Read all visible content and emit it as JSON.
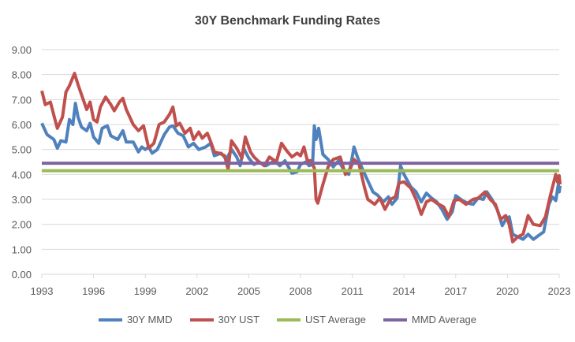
{
  "chart_data": {
    "type": "line",
    "title": "30Y Benchmark Funding Rates",
    "xlabel": "",
    "ylabel": "",
    "ylim": [
      0,
      9
    ],
    "xlim": [
      1993,
      2023
    ],
    "yticks": [
      "0.00",
      "1.00",
      "2.00",
      "3.00",
      "4.00",
      "5.00",
      "6.00",
      "7.00",
      "8.00",
      "9.00"
    ],
    "xticks": [
      "1993",
      "1996",
      "1999",
      "2002",
      "2005",
      "2008",
      "2011",
      "2014",
      "2017",
      "2020",
      "2023"
    ],
    "grid": true,
    "legend": "bottom",
    "series": [
      {
        "name": "30Y MMD",
        "color": "#4f81bd",
        "points": [
          [
            1993,
            6.05
          ],
          [
            1993.3,
            5.6
          ],
          [
            1993.7,
            5.4
          ],
          [
            1993.9,
            5.05
          ],
          [
            1994.1,
            5.35
          ],
          [
            1994.4,
            5.3
          ],
          [
            1994.6,
            6.2
          ],
          [
            1994.8,
            6.0
          ],
          [
            1994.95,
            6.85
          ],
          [
            1995.1,
            6.3
          ],
          [
            1995.3,
            5.9
          ],
          [
            1995.6,
            5.75
          ],
          [
            1995.8,
            6.05
          ],
          [
            1996,
            5.5
          ],
          [
            1996.3,
            5.25
          ],
          [
            1996.5,
            5.85
          ],
          [
            1996.8,
            5.95
          ],
          [
            1997,
            5.55
          ],
          [
            1997.4,
            5.4
          ],
          [
            1997.7,
            5.75
          ],
          [
            1997.9,
            5.3
          ],
          [
            1998.3,
            5.3
          ],
          [
            1998.6,
            4.9
          ],
          [
            1998.8,
            5.1
          ],
          [
            1999,
            5.0
          ],
          [
            1999.2,
            5.1
          ],
          [
            1999.4,
            4.85
          ],
          [
            1999.7,
            5.0
          ],
          [
            2000.1,
            5.6
          ],
          [
            2000.4,
            5.9
          ],
          [
            2000.6,
            5.95
          ],
          [
            2000.9,
            5.65
          ],
          [
            2001.2,
            5.55
          ],
          [
            2001.5,
            5.1
          ],
          [
            2001.8,
            5.25
          ],
          [
            2002.1,
            5.0
          ],
          [
            2002.5,
            5.1
          ],
          [
            2002.8,
            5.25
          ],
          [
            2003,
            4.75
          ],
          [
            2003.4,
            4.85
          ],
          [
            2003.7,
            4.6
          ],
          [
            2004,
            5.0
          ],
          [
            2004.3,
            4.7
          ],
          [
            2004.5,
            4.35
          ],
          [
            2004.7,
            5.05
          ],
          [
            2005,
            4.65
          ],
          [
            2005.3,
            4.4
          ],
          [
            2005.6,
            4.5
          ],
          [
            2006,
            4.35
          ],
          [
            2006.5,
            4.55
          ],
          [
            2006.8,
            4.35
          ],
          [
            2007.1,
            4.55
          ],
          [
            2007.5,
            4.05
          ],
          [
            2007.8,
            4.1
          ],
          [
            2008,
            4.4
          ],
          [
            2008.3,
            4.5
          ],
          [
            2008.5,
            4.35
          ],
          [
            2008.7,
            4.4
          ],
          [
            2008.8,
            5.95
          ],
          [
            2008.9,
            5.4
          ],
          [
            2009.05,
            5.85
          ],
          [
            2009.3,
            4.8
          ],
          [
            2009.6,
            4.6
          ],
          [
            2009.9,
            4.3
          ],
          [
            2010.2,
            4.55
          ],
          [
            2010.5,
            4.2
          ],
          [
            2010.8,
            4.0
          ],
          [
            2011,
            4.7
          ],
          [
            2011.1,
            5.1
          ],
          [
            2011.3,
            4.7
          ],
          [
            2011.6,
            4.2
          ],
          [
            2011.9,
            3.75
          ],
          [
            2012.2,
            3.3
          ],
          [
            2012.5,
            3.15
          ],
          [
            2012.8,
            2.9
          ],
          [
            2013.1,
            3.1
          ],
          [
            2013.3,
            2.8
          ],
          [
            2013.6,
            3.05
          ],
          [
            2013.8,
            4.35
          ],
          [
            2014,
            4.0
          ],
          [
            2014.4,
            3.5
          ],
          [
            2014.7,
            3.3
          ],
          [
            2015,
            2.9
          ],
          [
            2015.3,
            3.25
          ],
          [
            2015.6,
            3.05
          ],
          [
            2015.9,
            2.9
          ],
          [
            2016.2,
            2.6
          ],
          [
            2016.5,
            2.2
          ],
          [
            2016.8,
            2.5
          ],
          [
            2017,
            3.15
          ],
          [
            2017.4,
            2.95
          ],
          [
            2017.7,
            2.85
          ],
          [
            2018,
            2.8
          ],
          [
            2018.3,
            3.05
          ],
          [
            2018.6,
            3.0
          ],
          [
            2018.8,
            3.3
          ],
          [
            2019.1,
            3.0
          ],
          [
            2019.4,
            2.6
          ],
          [
            2019.7,
            1.95
          ],
          [
            2019.9,
            2.2
          ],
          [
            2020.1,
            2.3
          ],
          [
            2020.3,
            1.6
          ],
          [
            2020.6,
            1.5
          ],
          [
            2020.9,
            1.4
          ],
          [
            2021.2,
            1.6
          ],
          [
            2021.5,
            1.4
          ],
          [
            2021.8,
            1.55
          ],
          [
            2022.1,
            1.7
          ],
          [
            2022.4,
            2.8
          ],
          [
            2022.6,
            3.1
          ],
          [
            2022.8,
            2.95
          ],
          [
            2022.95,
            3.6
          ],
          [
            2023,
            3.3
          ],
          [
            2023.05,
            3.55
          ]
        ]
      },
      {
        "name": "30Y UST",
        "color": "#c0504d",
        "points": [
          [
            1993,
            7.35
          ],
          [
            1993.2,
            6.8
          ],
          [
            1993.5,
            6.9
          ],
          [
            1993.8,
            6.1
          ],
          [
            1993.9,
            5.85
          ],
          [
            1994.2,
            6.3
          ],
          [
            1994.4,
            7.3
          ],
          [
            1994.6,
            7.55
          ],
          [
            1994.9,
            8.05
          ],
          [
            1995.1,
            7.6
          ],
          [
            1995.4,
            7.0
          ],
          [
            1995.6,
            6.6
          ],
          [
            1995.8,
            6.9
          ],
          [
            1996,
            6.2
          ],
          [
            1996.2,
            6.1
          ],
          [
            1996.4,
            6.7
          ],
          [
            1996.7,
            7.1
          ],
          [
            1997,
            6.8
          ],
          [
            1997.2,
            6.55
          ],
          [
            1997.5,
            6.9
          ],
          [
            1997.7,
            7.05
          ],
          [
            1997.9,
            6.6
          ],
          [
            1998.3,
            6.0
          ],
          [
            1998.6,
            5.75
          ],
          [
            1998.9,
            5.95
          ],
          [
            1999.2,
            5.05
          ],
          [
            1999.5,
            5.25
          ],
          [
            1999.8,
            6.0
          ],
          [
            2000.1,
            6.1
          ],
          [
            2000.4,
            6.4
          ],
          [
            2000.6,
            6.7
          ],
          [
            2000.8,
            5.95
          ],
          [
            2001,
            6.05
          ],
          [
            2001.3,
            5.65
          ],
          [
            2001.6,
            5.85
          ],
          [
            2001.8,
            5.4
          ],
          [
            2002.1,
            5.7
          ],
          [
            2002.3,
            5.45
          ],
          [
            2002.6,
            5.65
          ],
          [
            2002.8,
            5.3
          ],
          [
            2003,
            4.9
          ],
          [
            2003.3,
            4.85
          ],
          [
            2003.6,
            4.75
          ],
          [
            2003.8,
            4.2
          ],
          [
            2004,
            5.35
          ],
          [
            2004.3,
            5.05
          ],
          [
            2004.6,
            4.65
          ],
          [
            2004.8,
            5.5
          ],
          [
            2005.1,
            4.9
          ],
          [
            2005.3,
            4.7
          ],
          [
            2005.6,
            4.5
          ],
          [
            2005.9,
            4.35
          ],
          [
            2006.2,
            4.7
          ],
          [
            2006.6,
            4.5
          ],
          [
            2006.9,
            5.25
          ],
          [
            2007.2,
            4.95
          ],
          [
            2007.5,
            4.7
          ],
          [
            2007.8,
            4.85
          ],
          [
            2008,
            4.75
          ],
          [
            2008.2,
            5.1
          ],
          [
            2008.4,
            4.55
          ],
          [
            2008.6,
            4.55
          ],
          [
            2008.8,
            4.25
          ],
          [
            2008.9,
            3.0
          ],
          [
            2009,
            2.85
          ],
          [
            2009.3,
            3.6
          ],
          [
            2009.6,
            4.3
          ],
          [
            2009.9,
            4.6
          ],
          [
            2010.3,
            4.7
          ],
          [
            2010.6,
            4.0
          ],
          [
            2010.9,
            4.25
          ],
          [
            2011.1,
            4.6
          ],
          [
            2011.4,
            4.4
          ],
          [
            2011.7,
            3.5
          ],
          [
            2011.9,
            3.0
          ],
          [
            2012.3,
            2.8
          ],
          [
            2012.6,
            3.05
          ],
          [
            2012.9,
            2.6
          ],
          [
            2013.2,
            3.0
          ],
          [
            2013.5,
            3.1
          ],
          [
            2013.7,
            3.65
          ],
          [
            2014,
            3.7
          ],
          [
            2014.4,
            3.45
          ],
          [
            2014.7,
            3.0
          ],
          [
            2015,
            2.4
          ],
          [
            2015.3,
            2.9
          ],
          [
            2015.6,
            3.0
          ],
          [
            2015.9,
            2.85
          ],
          [
            2016.3,
            2.7
          ],
          [
            2016.6,
            2.3
          ],
          [
            2016.9,
            2.95
          ],
          [
            2017.2,
            3.0
          ],
          [
            2017.6,
            2.8
          ],
          [
            2018,
            3.0
          ],
          [
            2018.3,
            3.05
          ],
          [
            2018.7,
            3.3
          ],
          [
            2019,
            3.0
          ],
          [
            2019.3,
            2.8
          ],
          [
            2019.6,
            2.2
          ],
          [
            2019.9,
            2.35
          ],
          [
            2020.1,
            2.0
          ],
          [
            2020.3,
            1.3
          ],
          [
            2020.6,
            1.5
          ],
          [
            2020.9,
            1.6
          ],
          [
            2021.2,
            2.35
          ],
          [
            2021.5,
            2.0
          ],
          [
            2021.9,
            1.95
          ],
          [
            2022.2,
            2.3
          ],
          [
            2022.5,
            3.2
          ],
          [
            2022.8,
            4.0
          ],
          [
            2022.9,
            3.7
          ],
          [
            2023,
            3.95
          ],
          [
            2023.05,
            3.6
          ]
        ]
      },
      {
        "name": "UST Average",
        "color": "#9bbb59",
        "constant": 4.15
      },
      {
        "name": "MMD Average",
        "color": "#8064a2",
        "constant": 4.45
      }
    ]
  }
}
